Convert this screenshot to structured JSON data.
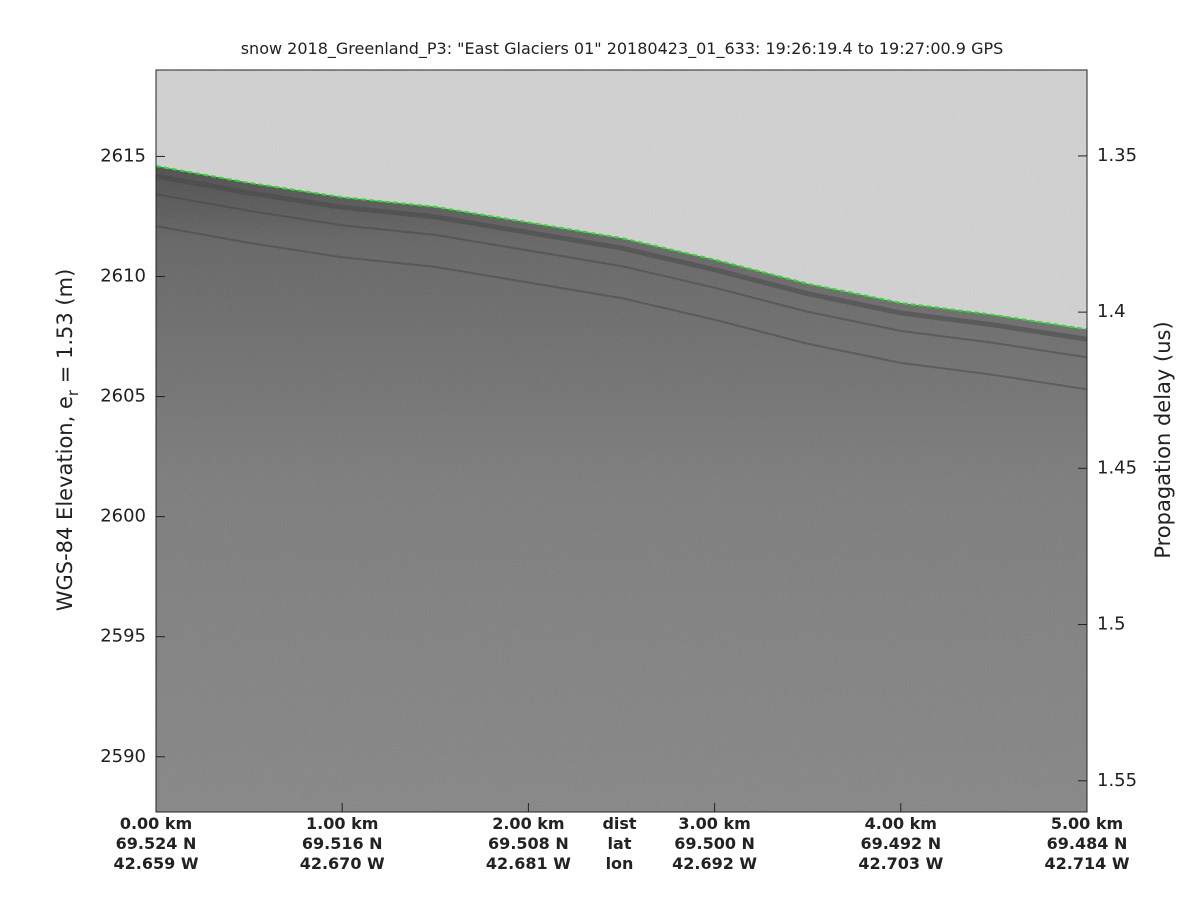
{
  "chart_data": {
    "type": "echogram",
    "title": "snow 2018_Greenland_P3: \"East Glaciers 01\"  20180423_01_633: 19:26:19.4 to 19:27:00.9 GPS",
    "ylabel": [
      "WGS-84 Elevation, e",
      "r",
      " = 1.53 (m)"
    ],
    "y2label": "Propagation delay (us)",
    "xlim": [
      0,
      5
    ],
    "xticks": [
      {
        "value": 0,
        "label": "0.00 km"
      },
      {
        "value": 1,
        "label": "1.00 km"
      },
      {
        "value": 2,
        "label": "2.00 km"
      },
      {
        "value": 3,
        "label": "3.00 km"
      },
      {
        "value": 4,
        "label": "4.00 km"
      },
      {
        "value": 5,
        "label": "5.00 km"
      }
    ],
    "lat_labels": [
      "69.524 N",
      "69.516 N",
      "69.508 N",
      "69.500 N",
      "69.492 N",
      "69.484 N"
    ],
    "lon_labels": [
      "42.659 W",
      "42.670 W",
      "42.681 W",
      "42.692 W",
      "42.703 W",
      "42.714 W"
    ],
    "row_names": [
      "dist",
      "lat",
      "lon"
    ],
    "ylim": [
      2587.7,
      2618.6
    ],
    "yticks": [
      2590,
      2595,
      2600,
      2605,
      2610,
      2615
    ],
    "y2lim": [
      1.3225,
      1.56
    ],
    "y2ticks": [
      1.35,
      1.4,
      1.45,
      1.5,
      1.55
    ],
    "x": [
      0,
      0.5,
      1,
      1.5,
      2,
      2.5,
      3,
      3.5,
      4,
      4.5,
      5
    ],
    "series": [
      {
        "color": "#22dd22",
        "values": [
          2614.6,
          2613.9,
          2613.3,
          2612.9,
          2612.25,
          2611.6,
          2610.7,
          2609.7,
          2608.9,
          2608.4,
          2607.8
        ]
      }
    ]
  }
}
